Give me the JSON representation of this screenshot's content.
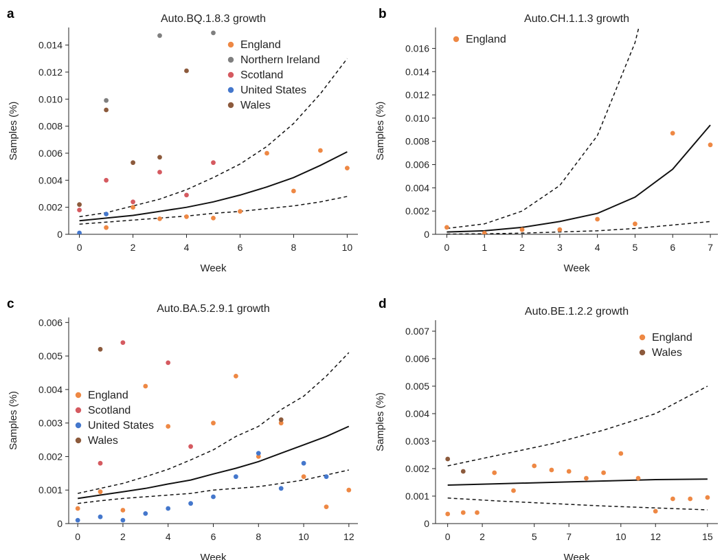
{
  "chart_data": [
    {
      "panel_label": "a",
      "type": "scatter",
      "title": "Auto.BQ.1.8.3 growth",
      "xlabel": "Week",
      "ylabel": "Samples (%)",
      "xlim": [
        -0.4,
        10.4
      ],
      "ylim": [
        0,
        0.0153
      ],
      "xticks": [
        0,
        2,
        4,
        6,
        8,
        10
      ],
      "yticks": [
        0,
        0.002,
        0.004,
        0.006,
        0.008,
        0.01,
        0.012,
        0.014
      ],
      "ytick_labels": [
        "0",
        "0.002",
        "0.004",
        "0.006",
        "0.008",
        "0.010",
        "0.012",
        "0.014"
      ],
      "legend_position": "top-right",
      "series": [
        {
          "name": "England",
          "color": "#EE8844",
          "show_in_legend": true,
          "points": [
            [
              1,
              0.0005
            ],
            [
              2,
              0.002
            ],
            [
              3,
              0.00115
            ],
            [
              4,
              0.0013
            ],
            [
              5,
              0.0012
            ],
            [
              6,
              0.0017
            ],
            [
              7,
              0.006
            ],
            [
              8,
              0.0032
            ],
            [
              9,
              0.0062
            ],
            [
              10,
              0.0049
            ]
          ]
        },
        {
          "name": "Northern Ireland",
          "color": "#7F7F7F",
          "show_in_legend": true,
          "points": [
            [
              1,
              0.0099
            ],
            [
              3,
              0.0147
            ],
            [
              5,
              0.0149
            ]
          ]
        },
        {
          "name": "Scotland",
          "color": "#D55A60",
          "show_in_legend": true,
          "points": [
            [
              0,
              0.0018
            ],
            [
              1,
              0.004
            ],
            [
              2,
              0.0024
            ],
            [
              3,
              0.0046
            ],
            [
              4,
              0.0029
            ],
            [
              5,
              0.0053
            ]
          ]
        },
        {
          "name": "United States",
          "color": "#4477CC",
          "show_in_legend": true,
          "points": [
            [
              0,
              0.0001
            ],
            [
              1,
              0.0015
            ]
          ]
        },
        {
          "name": "Wales",
          "color": "#8C5A3C",
          "show_in_legend": true,
          "points": [
            [
              0,
              0.0022
            ],
            [
              1,
              0.0092
            ],
            [
              2,
              0.0053
            ],
            [
              3,
              0.0057
            ],
            [
              4,
              0.0121
            ]
          ]
        }
      ],
      "fit": {
        "x": [
          0,
          1,
          2,
          3,
          4,
          5,
          6,
          7,
          8,
          9,
          10
        ],
        "mean": [
          0.001,
          0.0012,
          0.0014,
          0.0017,
          0.002,
          0.0024,
          0.0029,
          0.0035,
          0.0042,
          0.0051,
          0.0061
        ],
        "upper": [
          0.0013,
          0.0016,
          0.0021,
          0.0026,
          0.0033,
          0.0042,
          0.0052,
          0.0065,
          0.0082,
          0.0104,
          0.013
        ],
        "lower": [
          0.00075,
          0.0009,
          0.00105,
          0.0012,
          0.00135,
          0.00155,
          0.0017,
          0.0019,
          0.0021,
          0.0024,
          0.0028
        ]
      }
    },
    {
      "panel_label": "b",
      "type": "scatter",
      "title": "Auto.CH.1.1.3 growth",
      "xlabel": "Week",
      "ylabel": "Samples (%)",
      "xlim": [
        -0.3,
        7.2
      ],
      "ylim": [
        0,
        0.0178
      ],
      "xticks": [
        0,
        1,
        2,
        3,
        4,
        5,
        6,
        7
      ],
      "yticks": [
        0,
        0.002,
        0.004,
        0.006,
        0.008,
        0.01,
        0.012,
        0.014,
        0.016
      ],
      "ytick_labels": [
        "0",
        "0.002",
        "0.004",
        "0.006",
        "0.008",
        "0.010",
        "0.012",
        "0.014",
        "0.016"
      ],
      "legend_position": "top-left",
      "series": [
        {
          "name": "England",
          "color": "#EE8844",
          "show_in_legend": true,
          "points": [
            [
              0,
              0.0006
            ],
            [
              1,
              0.0001
            ],
            [
              2,
              0.0004
            ],
            [
              3,
              0.0004
            ],
            [
              4,
              0.0013
            ],
            [
              5,
              0.0009
            ],
            [
              6,
              0.0087
            ],
            [
              7,
              0.0077
            ]
          ]
        }
      ],
      "fit": {
        "x": [
          0,
          1,
          2,
          3,
          4,
          5,
          6,
          7
        ],
        "mean": [
          0.0002,
          0.0003,
          0.0006,
          0.0011,
          0.0018,
          0.0032,
          0.0056,
          0.0094
        ],
        "upper": [
          0.0005,
          0.0009,
          0.002,
          0.0042,
          0.0085,
          0.0178,
          0.0178,
          0.0178
        ],
        "lower": [
          2e-05,
          5e-05,
          0.0001,
          0.0002,
          0.0003,
          0.0005,
          0.0008,
          0.0011
        ],
        "upper_x": [
          0,
          1,
          2,
          3,
          4,
          4.5,
          5,
          5.1
        ],
        "upper_vals": [
          0.0005,
          0.0009,
          0.002,
          0.0042,
          0.0085,
          0.0125,
          0.0165,
          0.0178
        ]
      }
    },
    {
      "panel_label": "c",
      "type": "scatter",
      "title": "Auto.BA.5.2.9.1 growth",
      "xlabel": "Week",
      "ylabel": "Samples (%)",
      "xlim": [
        -0.4,
        12.4
      ],
      "ylim": [
        0,
        0.00615
      ],
      "xticks": [
        0,
        2,
        4,
        6,
        8,
        10,
        12
      ],
      "yticks": [
        0,
        0.001,
        0.002,
        0.003,
        0.004,
        0.005,
        0.006
      ],
      "ytick_labels": [
        "0",
        "0.001",
        "0.002",
        "0.003",
        "0.004",
        "0.005",
        "0.006"
      ],
      "legend_position": "center-left",
      "series": [
        {
          "name": "England",
          "color": "#EE8844",
          "show_in_legend": true,
          "points": [
            [
              0,
              0.00045
            ],
            [
              1,
              0.00095
            ],
            [
              2,
              0.0004
            ],
            [
              3,
              0.0041
            ],
            [
              4,
              0.0029
            ],
            [
              6,
              0.003
            ],
            [
              7,
              0.0044
            ],
            [
              8,
              0.002
            ],
            [
              9,
              0.003
            ],
            [
              10,
              0.0014
            ],
            [
              11,
              0.0005
            ],
            [
              12,
              0.001
            ]
          ]
        },
        {
          "name": "Scotland",
          "color": "#D55A60",
          "show_in_legend": true,
          "points": [
            [
              1,
              0.0018
            ],
            [
              2,
              0.0054
            ],
            [
              4,
              0.0048
            ],
            [
              5,
              0.0023
            ]
          ]
        },
        {
          "name": "United States",
          "color": "#4477CC",
          "show_in_legend": true,
          "points": [
            [
              0,
              0.0001
            ],
            [
              1,
              0.0002
            ],
            [
              2,
              0.0001
            ],
            [
              3,
              0.0003
            ],
            [
              4,
              0.00045
            ],
            [
              5,
              0.0006
            ],
            [
              6,
              0.0008
            ],
            [
              7,
              0.0014
            ],
            [
              8,
              0.0021
            ],
            [
              9,
              0.00105
            ],
            [
              10,
              0.0018
            ],
            [
              11,
              0.0014
            ]
          ]
        },
        {
          "name": "Wales",
          "color": "#8C5A3C",
          "show_in_legend": true,
          "points": [
            [
              1,
              0.0052
            ],
            [
              9,
              0.0031
            ]
          ]
        }
      ],
      "fit": {
        "x": [
          0,
          1,
          2,
          3,
          4,
          5,
          6,
          7,
          8,
          9,
          10,
          11,
          12
        ],
        "mean": [
          0.00075,
          0.00085,
          0.00095,
          0.00105,
          0.00118,
          0.0013,
          0.00148,
          0.00165,
          0.00185,
          0.0021,
          0.00235,
          0.0026,
          0.0029
        ],
        "upper": [
          0.0009,
          0.00105,
          0.0012,
          0.0014,
          0.00162,
          0.0019,
          0.0022,
          0.0026,
          0.0029,
          0.0034,
          0.0038,
          0.0044,
          0.0051
        ],
        "lower": [
          0.0006,
          0.00068,
          0.00075,
          0.0008,
          0.00085,
          0.0009,
          0.001,
          0.00105,
          0.0011,
          0.0012,
          0.0013,
          0.00145,
          0.0016
        ]
      }
    },
    {
      "panel_label": "d",
      "type": "scatter",
      "title": "Auto.BE.1.2.2 growth",
      "xlabel": "Week",
      "ylabel": "Samples (%)",
      "xlim": [
        -0.7,
        15.6
      ],
      "ylim": [
        0,
        0.0074
      ],
      "xticks": [
        0,
        2,
        5,
        7,
        10,
        12,
        15
      ],
      "yticks": [
        0,
        0.001,
        0.002,
        0.003,
        0.004,
        0.005,
        0.006,
        0.007
      ],
      "ytick_labels": [
        "0",
        "0.001",
        "0.002",
        "0.003",
        "0.004",
        "0.005",
        "0.006",
        "0.007"
      ],
      "legend_position": "top-right",
      "series": [
        {
          "name": "England",
          "color": "#EE8844",
          "show_in_legend": true,
          "points": [
            [
              0,
              0.00035
            ],
            [
              0.9,
              0.0004
            ],
            [
              1.7,
              0.0004
            ],
            [
              2.7,
              0.00185
            ],
            [
              3.8,
              0.0012
            ],
            [
              5,
              0.0021
            ],
            [
              6,
              0.00195
            ],
            [
              7,
              0.0019
            ],
            [
              8,
              0.00165
            ],
            [
              9,
              0.00185
            ],
            [
              10,
              0.00255
            ],
            [
              11,
              0.00165
            ],
            [
              12,
              0.00045
            ],
            [
              13,
              0.0009
            ],
            [
              14,
              0.0009
            ],
            [
              15,
              0.00095
            ]
          ]
        },
        {
          "name": "Wales",
          "color": "#8C5A3C",
          "show_in_legend": true,
          "points": [
            [
              0,
              0.00235
            ],
            [
              0.9,
              0.0019
            ]
          ]
        }
      ],
      "fit": {
        "x": [
          0,
          3,
          6,
          9,
          12,
          15
        ],
        "mean": [
          0.0014,
          0.00145,
          0.0015,
          0.00155,
          0.0016,
          0.00162
        ],
        "upper": [
          0.0021,
          0.0025,
          0.0029,
          0.0034,
          0.004,
          0.005
        ],
        "lower": [
          0.00093,
          0.00082,
          0.00073,
          0.00064,
          0.00057,
          0.0005
        ]
      }
    }
  ]
}
